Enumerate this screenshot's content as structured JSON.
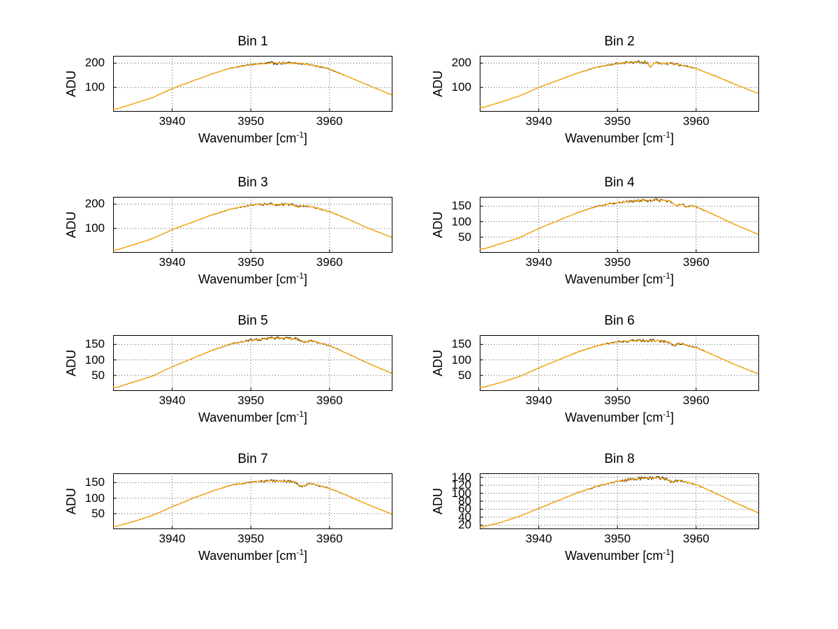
{
  "page": {
    "background": "#ffffff"
  },
  "axis_labels": {
    "ylabel": "ADU",
    "xlabel_main": "Wavenumber [cm",
    "xlabel_sup": "-1",
    "xlabel_close": "]"
  },
  "colors": {
    "line": "#FFA500",
    "overlay": "#222222",
    "grid": "#555555",
    "axis": "#000000",
    "text": "#000000"
  },
  "chart_data": [
    {
      "type": "line",
      "title": "Bin 1",
      "ylabel": "ADU",
      "xlabel": "Wavenumber [cm^-1]",
      "xlim": [
        3932.5,
        3968
      ],
      "ylim": [
        0,
        230
      ],
      "xticks": [
        3940,
        3950,
        3960
      ],
      "yticks": [
        100,
        200
      ],
      "x": [
        3933,
        3935,
        3937.5,
        3940,
        3942.5,
        3945,
        3947.5,
        3950,
        3952.5,
        3955,
        3957.5,
        3960,
        3962.5,
        3965,
        3968
      ],
      "y": [
        12,
        32,
        58,
        95,
        125,
        155,
        180,
        194,
        200,
        200,
        194,
        176,
        142,
        108,
        68
      ],
      "dips": []
    },
    {
      "type": "line",
      "title": "Bin 2",
      "ylabel": "ADU",
      "xlabel": "Wavenumber [cm^-1]",
      "xlim": [
        3932.5,
        3968
      ],
      "ylim": [
        0,
        230
      ],
      "xticks": [
        3940,
        3950,
        3960
      ],
      "yticks": [
        100,
        200
      ],
      "x": [
        3933,
        3935,
        3937.5,
        3940,
        3942.5,
        3945,
        3947.5,
        3950,
        3952.5,
        3955,
        3957.5,
        3960,
        3962.5,
        3965,
        3968
      ],
      "y": [
        18,
        38,
        64,
        100,
        130,
        160,
        184,
        199,
        205,
        202,
        196,
        178,
        146,
        112,
        74
      ],
      "dips": [
        {
          "x": 3954.2,
          "depth": 18,
          "width": 0.3
        }
      ]
    },
    {
      "type": "line",
      "title": "Bin 3",
      "ylabel": "ADU",
      "xlabel": "Wavenumber [cm^-1]",
      "xlim": [
        3932.5,
        3968
      ],
      "ylim": [
        0,
        230
      ],
      "xticks": [
        3940,
        3950,
        3960
      ],
      "yticks": [
        100,
        200
      ],
      "x": [
        3933,
        3935,
        3937.5,
        3940,
        3942.5,
        3945,
        3947.5,
        3950,
        3952.5,
        3955,
        3957.5,
        3960,
        3962.5,
        3965,
        3968
      ],
      "y": [
        12,
        32,
        58,
        95,
        125,
        155,
        180,
        196,
        200,
        198,
        191,
        170,
        136,
        100,
        62
      ],
      "dips": [
        {
          "x": 3956.0,
          "depth": 8,
          "width": 0.4
        }
      ]
    },
    {
      "type": "line",
      "title": "Bin 4",
      "ylabel": "ADU",
      "xlabel": "Wavenumber [cm^-1]",
      "xlim": [
        3932.5,
        3968
      ],
      "ylim": [
        0,
        180
      ],
      "xticks": [
        3940,
        3950,
        3960
      ],
      "yticks": [
        50,
        100,
        150
      ],
      "x": [
        3933,
        3935,
        3937.5,
        3940,
        3942.5,
        3945,
        3947.5,
        3950,
        3952.5,
        3955,
        3957.5,
        3960,
        3962.5,
        3965,
        3968
      ],
      "y": [
        12,
        28,
        48,
        78,
        104,
        130,
        150,
        162,
        168,
        170,
        164,
        148,
        120,
        90,
        58
      ],
      "dips": [
        {
          "x": 3957.5,
          "depth": 12,
          "width": 0.5
        },
        {
          "x": 3958.8,
          "depth": 8,
          "width": 0.4
        }
      ]
    },
    {
      "type": "line",
      "title": "Bin 5",
      "ylabel": "ADU",
      "xlabel": "Wavenumber [cm^-1]",
      "xlim": [
        3932.5,
        3968
      ],
      "ylim": [
        0,
        180
      ],
      "xticks": [
        3940,
        3950,
        3960
      ],
      "yticks": [
        50,
        100,
        150
      ],
      "x": [
        3933,
        3935,
        3937.5,
        3940,
        3942.5,
        3945,
        3947.5,
        3950,
        3952.5,
        3955,
        3957.5,
        3960,
        3962.5,
        3965,
        3968
      ],
      "y": [
        12,
        28,
        48,
        78,
        104,
        130,
        152,
        164,
        170,
        170,
        163,
        146,
        118,
        88,
        56
      ],
      "dips": [
        {
          "x": 3956.8,
          "depth": 9,
          "width": 0.5
        }
      ]
    },
    {
      "type": "line",
      "title": "Bin 6",
      "ylabel": "ADU",
      "xlabel": "Wavenumber [cm^-1]",
      "xlim": [
        3932.5,
        3968
      ],
      "ylim": [
        0,
        180
      ],
      "xticks": [
        3940,
        3950,
        3960
      ],
      "yticks": [
        50,
        100,
        150
      ],
      "x": [
        3933,
        3935,
        3937.5,
        3940,
        3942.5,
        3945,
        3947.5,
        3950,
        3952.5,
        3955,
        3957.5,
        3960,
        3962.5,
        3965,
        3968
      ],
      "y": [
        12,
        26,
        46,
        74,
        100,
        126,
        146,
        158,
        163,
        162,
        156,
        140,
        112,
        84,
        54
      ],
      "dips": [
        {
          "x": 3957.2,
          "depth": 10,
          "width": 0.5
        }
      ]
    },
    {
      "type": "line",
      "title": "Bin 7",
      "ylabel": "ADU",
      "xlabel": "Wavenumber [cm^-1]",
      "xlim": [
        3932.5,
        3968
      ],
      "ylim": [
        0,
        180
      ],
      "xticks": [
        3940,
        3950,
        3960
      ],
      "yticks": [
        50,
        100,
        150
      ],
      "x": [
        3933,
        3935,
        3937.5,
        3940,
        3942.5,
        3945,
        3947.5,
        3950,
        3952.5,
        3955,
        3957.5,
        3960,
        3962.5,
        3965,
        3968
      ],
      "y": [
        10,
        24,
        44,
        72,
        98,
        122,
        142,
        152,
        156,
        154,
        148,
        132,
        106,
        78,
        48
      ],
      "dips": [
        {
          "x": 3956.5,
          "depth": 13,
          "width": 0.6
        }
      ]
    },
    {
      "type": "line",
      "title": "Bin 8",
      "ylabel": "ADU",
      "xlabel": "Wavenumber [cm^-1]",
      "xlim": [
        3932.5,
        3968
      ],
      "ylim": [
        10,
        150
      ],
      "xticks": [
        3940,
        3950,
        3960
      ],
      "yticks": [
        20,
        40,
        60,
        80,
        100,
        120,
        140
      ],
      "x": [
        3933,
        3935,
        3937.5,
        3940,
        3942.5,
        3945,
        3947.5,
        3950,
        3952.5,
        3955,
        3957.5,
        3960,
        3962.5,
        3965,
        3968
      ],
      "y": [
        16,
        26,
        42,
        62,
        82,
        102,
        118,
        130,
        137,
        139,
        134,
        122,
        100,
        76,
        50
      ],
      "dips": [
        {
          "x": 3957.0,
          "depth": 7,
          "width": 0.5
        }
      ]
    }
  ]
}
